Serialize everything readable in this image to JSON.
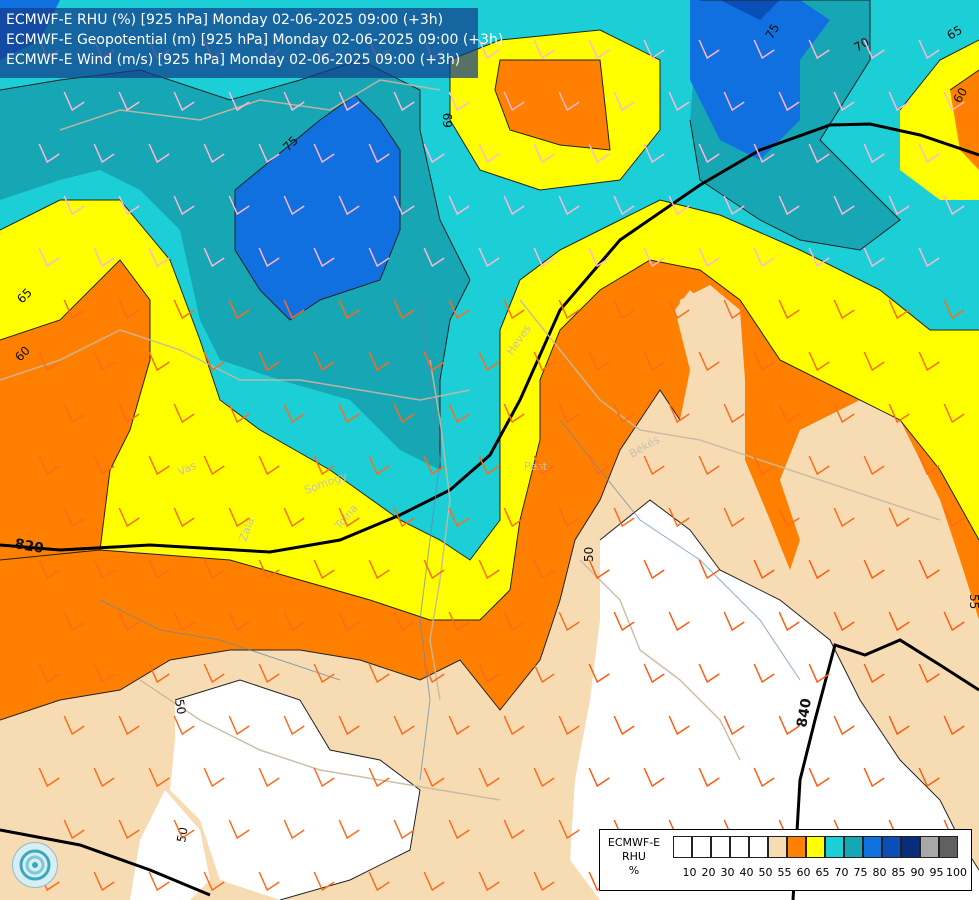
{
  "header": {
    "line1": "ECMWF-E RHU (%) [925 hPa] Monday 02-06-2025 09:00 (+3h)",
    "line2": "ECMWF-E Geopotential (m) [925 hPa] Monday 02-06-2025 09:00 (+3h)",
    "line3": "ECMWF-E Wind (m/s) [925 hPa] Monday 02-06-2025 09:00 (+3h)"
  },
  "legend": {
    "title_line1": "ECMWF-E",
    "title_line2": "RHU",
    "title_line3": "%",
    "ticks": [
      "10",
      "20",
      "30",
      "40",
      "50",
      "55",
      "60",
      "65",
      "70",
      "75",
      "80",
      "85",
      "90",
      "95",
      "100"
    ],
    "colors": [
      "#ffffff",
      "#ffffff",
      "#ffffff",
      "#ffffff",
      "#ffffff",
      "#f7dcb3",
      "#ff8000",
      "#ffff00",
      "#1ccfd6",
      "#17a6b3",
      "#1170e0",
      "#0a4fb8",
      "#062e7a",
      "#a8a8a8",
      "#606060"
    ]
  },
  "contour_labels": {
    "rhu": [
      "75",
      "70",
      "65",
      "69",
      "60",
      "65",
      "60",
      "75",
      "50",
      "50",
      "55",
      "50"
    ],
    "geopotential": [
      "820",
      "840"
    ]
  },
  "regions": [
    "Heves",
    "Pest",
    "Békés",
    "Vas",
    "Somogy",
    "Zala",
    "Tolna"
  ]
}
